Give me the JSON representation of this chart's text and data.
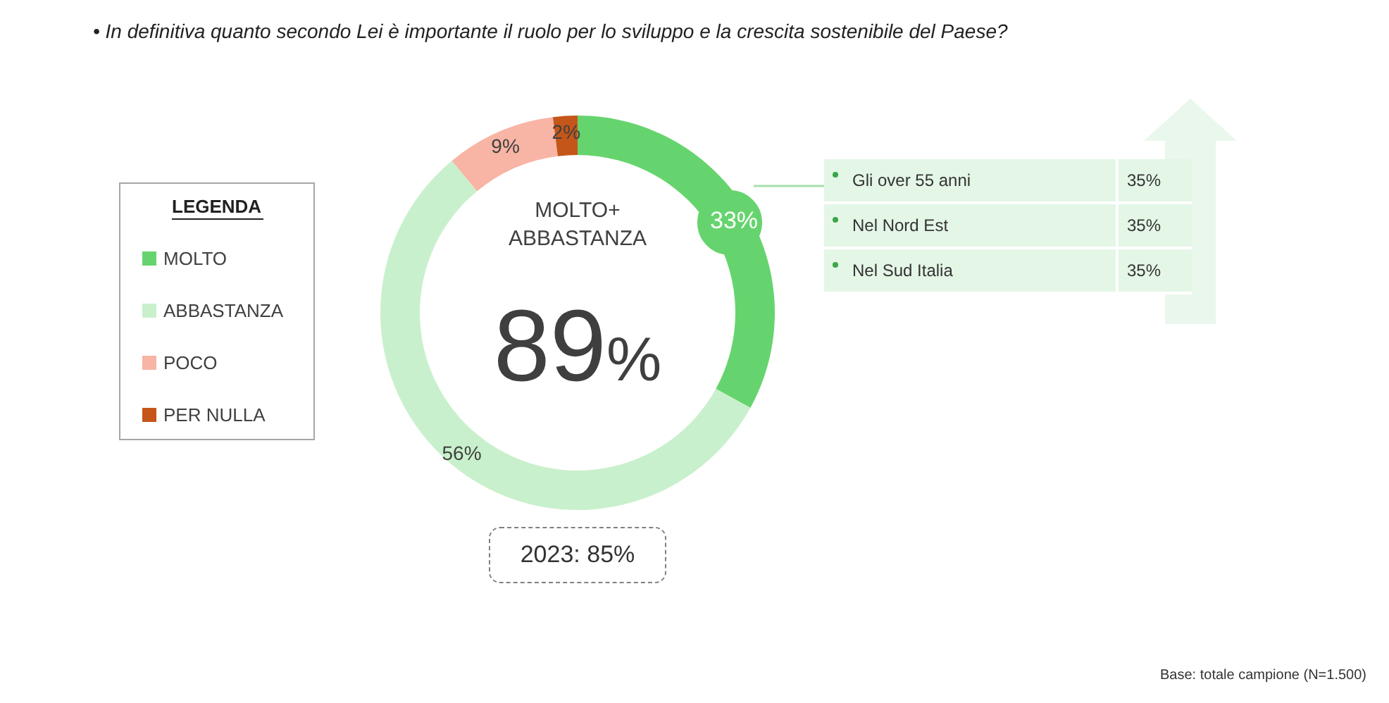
{
  "chart_data": {
    "type": "donut",
    "title": "• In definitiva quanto secondo Lei è importante il ruolo per lo sviluppo e la crescita sostenibile del Paese?",
    "legend_title": "LEGENDA",
    "categories": [
      "MOLTO",
      "ABBASTANZA",
      "POCO",
      "PER NULLA"
    ],
    "values": [
      33,
      56,
      9,
      2
    ],
    "value_labels": [
      "33%",
      "56%",
      "9%",
      "2%"
    ],
    "colors": [
      "#66d46e",
      "#c9f0cc",
      "#f8b4a4",
      "#c4561a"
    ],
    "legend": "left",
    "annotations": [
      "MOLTO+ ABBASTANZA",
      "89%",
      "2023: 85%",
      "Gli over 55 anni",
      "35%",
      "Nel Nord Est",
      "35%",
      "Nel Sud Italia",
      "35%",
      "Base: totale campione (N=1.500)"
    ]
  }
}
